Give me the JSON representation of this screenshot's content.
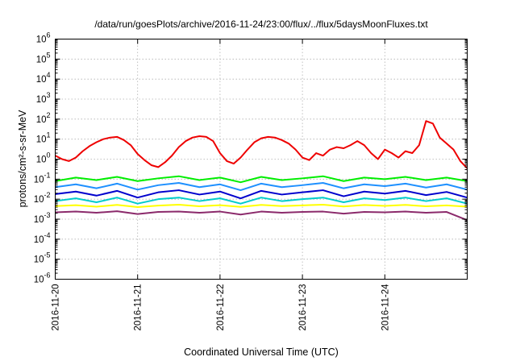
{
  "chart_data": {
    "type": "line",
    "title": "/data/run/goesPlots/archive/2016-11-24/23:00/flux/../flux/5daysMoonFluxes.txt",
    "xlabel": "Coordinated Universal Time (UTC)",
    "ylabel": "protons/cm²-s-sr-MeV",
    "ylim": [
      1e-06,
      1000000.0
    ],
    "yscale": "log",
    "y_ticks": [
      {
        "base": "10",
        "exp": "-6"
      },
      {
        "base": "10",
        "exp": "-5"
      },
      {
        "base": "10",
        "exp": "-4"
      },
      {
        "base": "10",
        "exp": "-3"
      },
      {
        "base": "10",
        "exp": "-2"
      },
      {
        "base": "10",
        "exp": "-1"
      },
      {
        "base": "10",
        "exp": "0"
      },
      {
        "base": "10",
        "exp": "1"
      },
      {
        "base": "10",
        "exp": "2"
      },
      {
        "base": "10",
        "exp": "3"
      },
      {
        "base": "10",
        "exp": "4"
      },
      {
        "base": "10",
        "exp": "5"
      },
      {
        "base": "10",
        "exp": "6"
      }
    ],
    "xlim": [
      "2016-11-20",
      "2016-11-25"
    ],
    "x_ticks": [
      "2016-11-20",
      "2016-11-21",
      "2016-11-22",
      "2016-11-23",
      "2016-11-24"
    ],
    "grid": true,
    "legend": "none",
    "series": [
      {
        "color": "#ee0000",
        "x": [
          "2016-11-20T00:00",
          "2016-11-20T02:00",
          "2016-11-20T04:00",
          "2016-11-20T06:00",
          "2016-11-20T08:00",
          "2016-11-20T10:00",
          "2016-11-20T12:00",
          "2016-11-20T14:00",
          "2016-11-20T16:00",
          "2016-11-20T18:00",
          "2016-11-20T20:00",
          "2016-11-20T22:00",
          "2016-11-21T00:00",
          "2016-11-21T02:00",
          "2016-11-21T04:00",
          "2016-11-21T06:00",
          "2016-11-21T08:00",
          "2016-11-21T10:00",
          "2016-11-21T12:00",
          "2016-11-21T14:00",
          "2016-11-21T16:00",
          "2016-11-21T18:00",
          "2016-11-21T20:00",
          "2016-11-21T22:00",
          "2016-11-22T00:00",
          "2016-11-22T02:00",
          "2016-11-22T04:00",
          "2016-11-22T06:00",
          "2016-11-22T08:00",
          "2016-11-22T10:00",
          "2016-11-22T12:00",
          "2016-11-22T14:00",
          "2016-11-22T16:00",
          "2016-11-22T18:00",
          "2016-11-22T20:00",
          "2016-11-22T22:00",
          "2016-11-23T00:00",
          "2016-11-23T02:00",
          "2016-11-23T04:00",
          "2016-11-23T06:00",
          "2016-11-23T08:00",
          "2016-11-23T10:00",
          "2016-11-23T12:00",
          "2016-11-23T14:00",
          "2016-11-23T16:00",
          "2016-11-23T18:00",
          "2016-11-23T20:00",
          "2016-11-23T22:00",
          "2016-11-24T00:00",
          "2016-11-24T02:00",
          "2016-11-24T04:00",
          "2016-11-24T06:00",
          "2016-11-24T08:00",
          "2016-11-24T10:00",
          "2016-11-24T12:00",
          "2016-11-24T14:00",
          "2016-11-24T16:00",
          "2016-11-24T18:00",
          "2016-11-24T20:00",
          "2016-11-24T22:00",
          "2016-11-24T23:59"
        ],
        "y": [
          1.5,
          1.0,
          0.8,
          1.2,
          2.5,
          4.5,
          7.0,
          10,
          12,
          13,
          9,
          5,
          1.8,
          0.9,
          0.5,
          0.4,
          0.7,
          1.5,
          4,
          8,
          12,
          14,
          13,
          8,
          2,
          0.8,
          0.6,
          1.2,
          3,
          7,
          11,
          13,
          12,
          9,
          6,
          3,
          1.2,
          0.9,
          2.0,
          1.5,
          3.0,
          4.0,
          3.5,
          5.0,
          8.0,
          5.0,
          2.0,
          1.0,
          3.0,
          2.0,
          1.2,
          2.5,
          2.0,
          5.0,
          80,
          60,
          12,
          6.0,
          3.0,
          0.8,
          0.35
        ]
      },
      {
        "color": "#00ee00",
        "x": [
          "2016-11-20T00:00",
          "2016-11-20T06:00",
          "2016-11-20T12:00",
          "2016-11-20T18:00",
          "2016-11-21T00:00",
          "2016-11-21T06:00",
          "2016-11-21T12:00",
          "2016-11-21T18:00",
          "2016-11-22T00:00",
          "2016-11-22T06:00",
          "2016-11-22T12:00",
          "2016-11-22T18:00",
          "2016-11-23T00:00",
          "2016-11-23T06:00",
          "2016-11-23T12:00",
          "2016-11-23T18:00",
          "2016-11-24T00:00",
          "2016-11-24T06:00",
          "2016-11-24T12:00",
          "2016-11-24T18:00",
          "2016-11-24T23:59"
        ],
        "y": [
          0.08,
          0.12,
          0.09,
          0.13,
          0.08,
          0.11,
          0.14,
          0.09,
          0.12,
          0.07,
          0.13,
          0.09,
          0.11,
          0.14,
          0.08,
          0.12,
          0.1,
          0.13,
          0.09,
          0.12,
          0.08
        ]
      },
      {
        "color": "#1e90ff",
        "x": [
          "2016-11-20T00:00",
          "2016-11-20T06:00",
          "2016-11-20T12:00",
          "2016-11-20T18:00",
          "2016-11-21T00:00",
          "2016-11-21T06:00",
          "2016-11-21T12:00",
          "2016-11-21T18:00",
          "2016-11-22T00:00",
          "2016-11-22T06:00",
          "2016-11-22T12:00",
          "2016-11-22T18:00",
          "2016-11-23T00:00",
          "2016-11-23T06:00",
          "2016-11-23T12:00",
          "2016-11-23T18:00",
          "2016-11-24T00:00",
          "2016-11-24T06:00",
          "2016-11-24T12:00",
          "2016-11-24T18:00",
          "2016-11-24T23:59"
        ],
        "y": [
          0.04,
          0.055,
          0.035,
          0.06,
          0.03,
          0.05,
          0.065,
          0.04,
          0.055,
          0.028,
          0.06,
          0.04,
          0.05,
          0.065,
          0.035,
          0.055,
          0.045,
          0.06,
          0.038,
          0.055,
          0.03
        ]
      },
      {
        "color": "#0000cd",
        "x": [
          "2016-11-20T00:00",
          "2016-11-20T06:00",
          "2016-11-20T12:00",
          "2016-11-20T18:00",
          "2016-11-21T00:00",
          "2016-11-21T06:00",
          "2016-11-21T12:00",
          "2016-11-21T18:00",
          "2016-11-22T00:00",
          "2016-11-22T06:00",
          "2016-11-22T12:00",
          "2016-11-22T18:00",
          "2016-11-23T00:00",
          "2016-11-23T06:00",
          "2016-11-23T12:00",
          "2016-11-23T18:00",
          "2016-11-24T00:00",
          "2016-11-24T06:00",
          "2016-11-24T12:00",
          "2016-11-24T18:00",
          "2016-11-24T23:59"
        ],
        "y": [
          0.018,
          0.024,
          0.015,
          0.026,
          0.012,
          0.022,
          0.028,
          0.017,
          0.024,
          0.011,
          0.026,
          0.017,
          0.022,
          0.028,
          0.014,
          0.024,
          0.019,
          0.026,
          0.016,
          0.023,
          0.012
        ]
      },
      {
        "color": "#00cccc",
        "x": [
          "2016-11-20T00:00",
          "2016-11-20T06:00",
          "2016-11-20T12:00",
          "2016-11-20T18:00",
          "2016-11-21T00:00",
          "2016-11-21T06:00",
          "2016-11-21T12:00",
          "2016-11-21T18:00",
          "2016-11-22T00:00",
          "2016-11-22T06:00",
          "2016-11-22T12:00",
          "2016-11-22T18:00",
          "2016-11-23T00:00",
          "2016-11-23T06:00",
          "2016-11-23T12:00",
          "2016-11-23T18:00",
          "2016-11-24T00:00",
          "2016-11-24T06:00",
          "2016-11-24T12:00",
          "2016-11-24T18:00",
          "2016-11-24T23:59"
        ],
        "y": [
          0.008,
          0.011,
          0.007,
          0.012,
          0.006,
          0.01,
          0.012,
          0.008,
          0.011,
          0.006,
          0.012,
          0.008,
          0.01,
          0.012,
          0.007,
          0.011,
          0.009,
          0.012,
          0.008,
          0.011,
          0.006
        ]
      },
      {
        "color": "#ffff00",
        "x": [
          "2016-11-20T00:00",
          "2016-11-20T06:00",
          "2016-11-20T12:00",
          "2016-11-20T18:00",
          "2016-11-21T00:00",
          "2016-11-21T06:00",
          "2016-11-21T12:00",
          "2016-11-21T18:00",
          "2016-11-22T00:00",
          "2016-11-22T06:00",
          "2016-11-22T12:00",
          "2016-11-22T18:00",
          "2016-11-23T00:00",
          "2016-11-23T06:00",
          "2016-11-23T12:00",
          "2016-11-23T18:00",
          "2016-11-24T00:00",
          "2016-11-24T06:00",
          "2016-11-24T12:00",
          "2016-11-24T18:00",
          "2016-11-24T23:59"
        ],
        "y": [
          0.0045,
          0.005,
          0.0042,
          0.0052,
          0.004,
          0.0048,
          0.0053,
          0.0044,
          0.005,
          0.0041,
          0.0052,
          0.0045,
          0.0049,
          0.0053,
          0.0043,
          0.0051,
          0.0046,
          0.0052,
          0.0044,
          0.0049,
          0.0042
        ]
      },
      {
        "color": "#8b2a6b",
        "x": [
          "2016-11-20T00:00",
          "2016-11-20T06:00",
          "2016-11-20T12:00",
          "2016-11-20T18:00",
          "2016-11-21T00:00",
          "2016-11-21T06:00",
          "2016-11-21T12:00",
          "2016-11-21T18:00",
          "2016-11-22T00:00",
          "2016-11-22T06:00",
          "2016-11-22T12:00",
          "2016-11-22T18:00",
          "2016-11-23T00:00",
          "2016-11-23T06:00",
          "2016-11-23T12:00",
          "2016-11-23T18:00",
          "2016-11-24T00:00",
          "2016-11-24T06:00",
          "2016-11-24T12:00",
          "2016-11-24T18:00",
          "2016-11-24T23:59"
        ],
        "y": [
          0.0022,
          0.0024,
          0.0021,
          0.0025,
          0.0018,
          0.0023,
          0.0024,
          0.0021,
          0.0024,
          0.0017,
          0.0024,
          0.0021,
          0.0023,
          0.0024,
          0.0019,
          0.0023,
          0.0022,
          0.0024,
          0.0021,
          0.0023,
          0.0009
        ]
      }
    ]
  }
}
